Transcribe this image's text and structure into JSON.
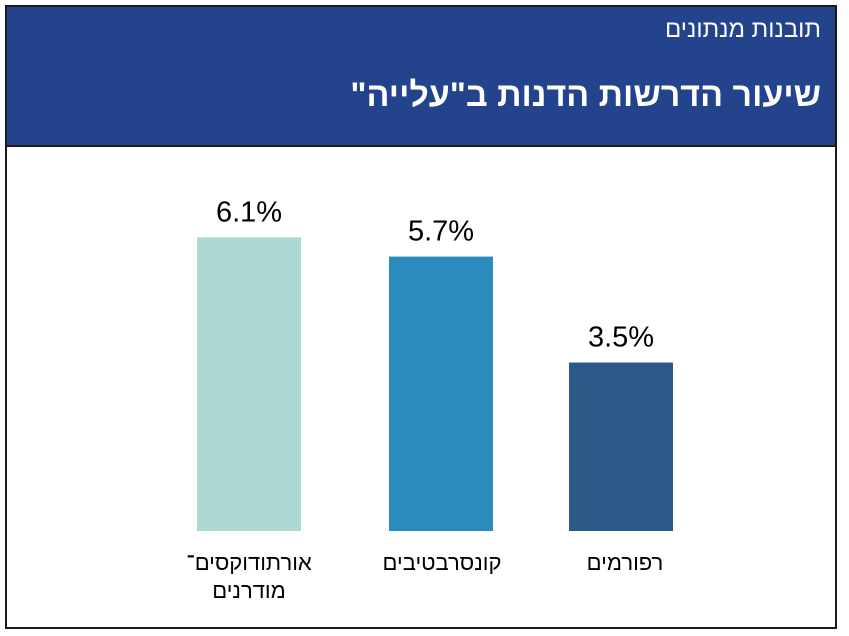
{
  "header": {
    "kicker": "תובנות מנתונים",
    "title": "שיעור הדרשות הדנות ב\"עלייה\""
  },
  "chart_data": {
    "type": "bar",
    "categories": [
      "אורתודוקסים־ מודרנים",
      "קונסרבטיבים",
      "רפורמים"
    ],
    "values": [
      6.1,
      5.7,
      3.5
    ],
    "value_labels": [
      "6.1%",
      "5.7%",
      "3.5%"
    ],
    "colors": [
      "#acd9d4",
      "#2b8bbd",
      "#2c5a88"
    ],
    "ylim": [
      0,
      7
    ],
    "grid": false,
    "legend": "none"
  }
}
